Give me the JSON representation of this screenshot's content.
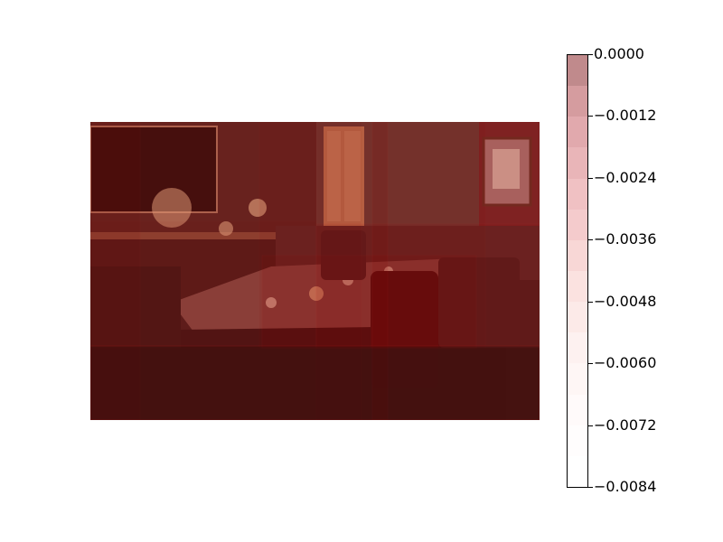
{
  "image": {
    "description_icon": "restaurant-dining-room-photo-with-heatmap-overlay",
    "overlay_color": "#8b0000"
  },
  "colorbar": {
    "ticks": [
      "0.0000",
      "−0.0012",
      "−0.0024",
      "−0.0036",
      "−0.0048",
      "−0.0060",
      "−0.0072",
      "−0.0084"
    ],
    "steps": [
      "#c08a8c",
      "#d59c9f",
      "#e1a9ad",
      "#e9b5b8",
      "#f0c1c3",
      "#f4cbcc",
      "#f8d7d6",
      "#fbe2e0",
      "#fceae8",
      "#fdf1f0",
      "#fef6f5",
      "#fffafa",
      "#fffdfd",
      "#ffffff"
    ]
  }
}
